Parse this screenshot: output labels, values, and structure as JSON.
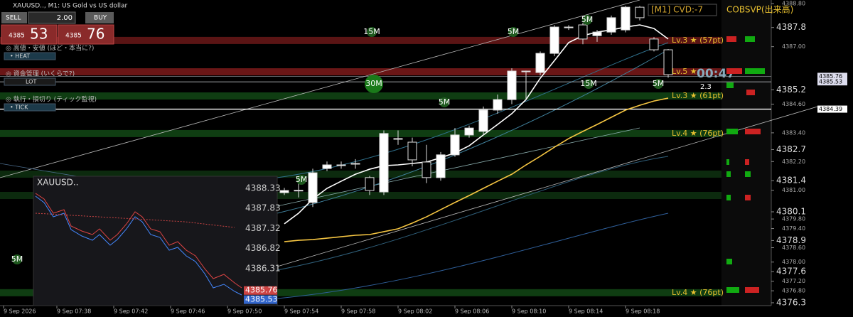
{
  "window": {
    "title": "XAUUSD.., M1: US Gold vs US dollar"
  },
  "trade_panel": {
    "sell": "SELL",
    "buy": "BUY",
    "lot": "2.00",
    "bid_big": "4385",
    "bid_small": "53",
    "ask_big": "4385",
    "ask_small": "76"
  },
  "side_menu": [
    {
      "title": "◎ 高値・安値 (ほど・本当に?)",
      "button": "• HEAT"
    },
    {
      "title": "◎ 資金管理 (いくらで?)",
      "button": "LOT"
    },
    {
      "title": "◎ 執行・損切り (ティック監視)",
      "button": "• TICK"
    }
  ],
  "indicator": {
    "cvd": "[M1] CVD:-7",
    "cobsvp": "COBSVP(出来高)",
    "timer": "00:47",
    "spread": "2.3"
  },
  "timeframe_marks": [
    "15M",
    "5M",
    "5M",
    "30M",
    "5M",
    "15M",
    "5M",
    "5M",
    "5M"
  ],
  "chart_data": {
    "type": "candlestick",
    "ylim": [
      4376.18,
      4388.95
    ],
    "yticks": [
      {
        "value": 4388.8,
        "label": "4388.80"
      },
      4387.8,
      {
        "value": 4387.0,
        "label": "4387.00"
      },
      4385.2,
      {
        "value": 4384.6,
        "label": "4384.60"
      },
      {
        "value": 4383.4,
        "label": "4383.40"
      },
      4382.7,
      {
        "value": 4382.2,
        "label": "4382.20"
      },
      4381.4,
      {
        "value": 4381.0,
        "label": "4381.00"
      },
      4380.1,
      {
        "value": 4379.8,
        "label": "4379.80"
      },
      {
        "value": 4379.4,
        "label": "4379.40"
      },
      4378.9,
      {
        "value": 4378.6,
        "label": "4378.60"
      },
      {
        "value": 4378.0,
        "label": "4378.00"
      },
      4377.6,
      {
        "value": 4377.2,
        "label": "4377.20"
      },
      {
        "value": 4376.8,
        "label": "4376.80"
      },
      4376.3
    ],
    "time_labels": [
      "9 Sep 2026",
      "9 Sep 07:38",
      "9 Sep 07:42",
      "9 Sep 07:46",
      "9 Sep 07:50",
      "9 Sep 07:54",
      "9 Sep 07:58",
      "9 Sep 08:02",
      "9 Sep 08:06",
      "9 Sep 08:10",
      "9 Sep 08:14",
      "9 Sep 08:18"
    ],
    "open": [
      4380.9,
      4380.99,
      4380.49,
      4381.91,
      4382.06,
      4382.12,
      4381.53,
      4380.93,
      4383.16,
      4383.01,
      4382.18,
      4381.53,
      4382.48,
      4383.31,
      4383.46,
      4384.35,
      4384.79,
      4385.98,
      4385.92,
      4386.72,
      4387.82,
      4387.91,
      4387.46,
      4387.61,
      4387.7,
      4388.65,
      4387.32,
      4386.87
    ],
    "high": [
      4381.1,
      4381.3,
      4381.9,
      4382.2,
      4382.2,
      4382.3,
      4381.6,
      4383.5,
      4383.5,
      4383.2,
      4382.9,
      4382.6,
      4383.6,
      4383.7,
      4384.5,
      4385.0,
      4386.1,
      4386.0,
      4386.8,
      4387.9,
      4387.9,
      4388.0,
      4387.7,
      4388.3,
      4388.7,
      4388.7,
      4387.4,
      4386.9
    ],
    "low": [
      4380.8,
      4380.7,
      4380.3,
      4381.8,
      4381.9,
      4381.9,
      4380.8,
      4380.8,
      4382.9,
      4382.0,
      4381.3,
      4381.4,
      4382.4,
      4383.2,
      4383.3,
      4384.2,
      4384.6,
      4384.8,
      4385.8,
      4386.6,
      4387.7,
      4387.1,
      4387.2,
      4387.5,
      4387.6,
      4388.1,
      4386.8,
      4385.7
    ],
    "close": [
      4380.99,
      4381.0,
      4381.73,
      4382.06,
      4382.06,
      4382.12,
      4380.99,
      4383.37,
      4383.16,
      4382.27,
      4381.53,
      4382.48,
      4383.31,
      4383.6,
      4384.35,
      4384.79,
      4385.98,
      4385.98,
      4386.72,
      4387.82,
      4387.82,
      4387.32,
      4387.61,
      4388.21,
      4388.65,
      4388.21,
      4386.87,
      4385.83
    ],
    "ma": [
      {
        "color": "#ffffff",
        "values": [
          4379.6,
          4380.04,
          4380.63,
          4381.08,
          4381.38,
          4381.67,
          4381.88,
          4382.03,
          4382.06,
          4382.12,
          4382.18,
          4382.36,
          4382.56,
          4382.86,
          4383.31,
          4383.75,
          4384.2,
          4384.79,
          4385.68,
          4386.42,
          4387.17,
          4387.46,
          4387.61,
          4387.7,
          4387.82,
          4387.91,
          4387.76,
          4387.32
        ]
      },
      {
        "color": "#f5c542",
        "values": [
          4378.85,
          4378.91,
          4378.94,
          4379.0,
          4379.06,
          4379.12,
          4379.15,
          4379.27,
          4379.39,
          4379.63,
          4379.89,
          4380.19,
          4380.49,
          4380.78,
          4381.08,
          4381.38,
          4381.67,
          4382.06,
          4382.42,
          4382.8,
          4383.16,
          4383.46,
          4383.75,
          4384.05,
          4384.35,
          4384.55,
          4384.73,
          4384.85
        ]
      }
    ],
    "levels": [
      {
        "label": "Lv.3 ★ (57pt)",
        "price": 4387.26,
        "color": "#5a1414"
      },
      {
        "label": "Lv.5 ★",
        "price": 4385.95,
        "color": "#6a1616"
      },
      {
        "label": "Lv.3 ★ (61pt)",
        "price": 4384.94,
        "color": "#0f3d12"
      },
      {
        "label": "Lv.4 ★ (76pt)",
        "price": 4383.37,
        "color": "#0f3d12"
      },
      {
        "label": "Lv.4 ★ (76pt)",
        "price": 4376.72,
        "color": "#0f3d12"
      }
    ],
    "price_markers": [
      {
        "value": 4385.76,
        "color": "#9aa0a8"
      },
      {
        "value": 4385.53,
        "color": "#d0d4d8"
      },
      {
        "value": 4384.39,
        "color": "#ffffff"
      }
    ],
    "mini": {
      "title": "XAUUSD..",
      "ylim": [
        4385.38,
        4388.63
      ],
      "yticks": [
        4388.33,
        4387.83,
        4387.32,
        4386.82,
        4386.31
      ],
      "ask": 4385.76,
      "bid": 4385.53
    }
  }
}
